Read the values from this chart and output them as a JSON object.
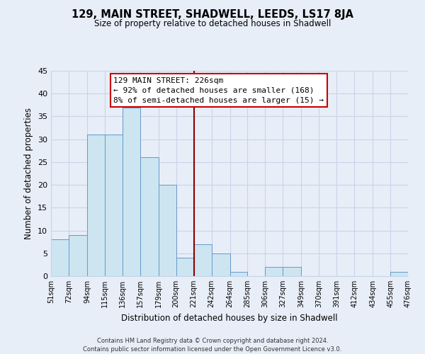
{
  "title": "129, MAIN STREET, SHADWELL, LEEDS, LS17 8JA",
  "subtitle": "Size of property relative to detached houses in Shadwell",
  "xlabel": "Distribution of detached houses by size in Shadwell",
  "ylabel": "Number of detached properties",
  "bin_edges": [
    51,
    72,
    94,
    115,
    136,
    157,
    179,
    200,
    221,
    242,
    264,
    285,
    306,
    327,
    349,
    370,
    391,
    412,
    434,
    455,
    476
  ],
  "bin_counts": [
    8,
    9,
    31,
    31,
    37,
    26,
    20,
    4,
    7,
    5,
    1,
    0,
    2,
    2,
    0,
    0,
    0,
    0,
    0,
    1
  ],
  "tick_labels": [
    "51sqm",
    "72sqm",
    "94sqm",
    "115sqm",
    "136sqm",
    "157sqm",
    "179sqm",
    "200sqm",
    "221sqm",
    "242sqm",
    "264sqm",
    "285sqm",
    "306sqm",
    "327sqm",
    "349sqm",
    "370sqm",
    "391sqm",
    "412sqm",
    "434sqm",
    "455sqm",
    "476sqm"
  ],
  "bar_color": "#cce5f0",
  "bar_edge_color": "#6699cc",
  "vline_x": 221,
  "vline_color": "#8b0000",
  "ylim": [
    0,
    45
  ],
  "yticks": [
    0,
    5,
    10,
    15,
    20,
    25,
    30,
    35,
    40,
    45
  ],
  "annotation_title": "129 MAIN STREET: 226sqm",
  "annotation_line1": "← 92% of detached houses are smaller (168)",
  "annotation_line2": "8% of semi-detached houses are larger (15) →",
  "annotation_box_color": "#ffffff",
  "annotation_box_edge": "#cc0000",
  "footer_line1": "Contains HM Land Registry data © Crown copyright and database right 2024.",
  "footer_line2": "Contains public sector information licensed under the Open Government Licence v3.0.",
  "background_color": "#e8eef8",
  "grid_color": "#c8d4e8"
}
